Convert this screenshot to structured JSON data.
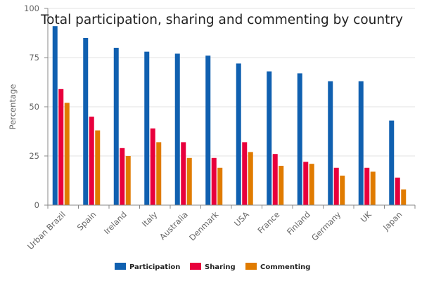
{
  "chart_data": {
    "type": "bar",
    "title": "Total participation, sharing and commenting by country",
    "xlabel": "",
    "ylabel": "Percentage",
    "ylim": [
      0,
      100
    ],
    "yticks": [
      0,
      25,
      50,
      75,
      100
    ],
    "grid": true,
    "legend_position": "bottom",
    "categories": [
      "Urban Brazil",
      "Spain",
      "Ireland",
      "Italy",
      "Australia",
      "Denmark",
      "USA",
      "France",
      "Finland",
      "Germany",
      "UK",
      "Japan"
    ],
    "series": [
      {
        "name": "Participation",
        "color": "#1060b0",
        "values": [
          91,
          85,
          80,
          78,
          77,
          76,
          72,
          68,
          67,
          63,
          63,
          43
        ]
      },
      {
        "name": "Sharing",
        "color": "#e8003c",
        "values": [
          59,
          45,
          29,
          39,
          32,
          24,
          32,
          26,
          22,
          19,
          19,
          14
        ]
      },
      {
        "name": "Commenting",
        "color": "#e07b00",
        "values": [
          52,
          38,
          25,
          32,
          24,
          19,
          27,
          20,
          21,
          15,
          17,
          8
        ]
      }
    ]
  }
}
